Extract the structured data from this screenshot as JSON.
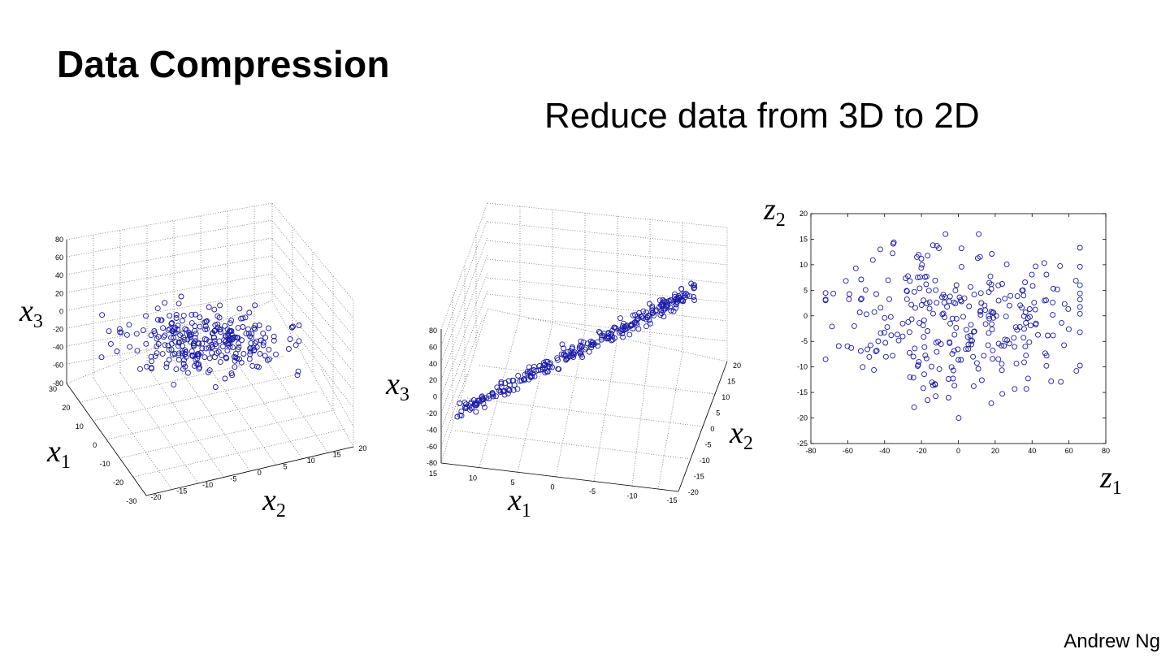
{
  "slide": {
    "title": "Data Compression",
    "subtitle": "Reduce data from 3D to 2D",
    "author": "Andrew Ng"
  },
  "colors": {
    "points": "#1a1aa6",
    "grid": "#666666"
  },
  "chart_data": [
    {
      "type": "scatter",
      "name": "plot-3d-original",
      "title": "",
      "axes": {
        "x1": {
          "label": "x1",
          "ticks": [
            30,
            20,
            10,
            0,
            -10,
            -20,
            -30
          ],
          "range": [
            -30,
            30
          ]
        },
        "x2": {
          "label": "x2",
          "ticks": [
            -20,
            -15,
            -10,
            -5,
            0,
            5,
            10,
            15,
            20
          ],
          "range": [
            -20,
            20
          ]
        },
        "x3": {
          "label": "x3",
          "ticks": [
            80,
            60,
            40,
            20,
            0,
            -20,
            -40,
            -60,
            -80
          ],
          "range": [
            -80,
            80
          ]
        }
      },
      "note": "approx. 300 points scattered in a thin slab near x3 ≈ -30",
      "seed": 11,
      "n_points": 300
    },
    {
      "type": "scatter",
      "name": "plot-3d-rotated",
      "title": "",
      "axes": {
        "x1": {
          "label": "x1",
          "ticks": [
            15,
            10,
            5,
            0,
            -5,
            -10,
            -15
          ],
          "range": [
            -15,
            15
          ]
        },
        "x2": {
          "label": "x2",
          "ticks": [
            20,
            15,
            10,
            5,
            0,
            -5,
            -10,
            -15,
            -20
          ],
          "range": [
            -20,
            20
          ]
        },
        "x3": {
          "label": "x3",
          "ticks": [
            80,
            60,
            40,
            20,
            0,
            -20,
            -40,
            -60,
            -80
          ],
          "range": [
            -80,
            80
          ]
        }
      },
      "note": "same points viewed edge-on; they lie close to a plane",
      "seed": 23,
      "n_points": 300
    },
    {
      "type": "scatter",
      "name": "plot-2d-projected",
      "title": "",
      "xlabel": "z1",
      "ylabel": "z2",
      "xlim": [
        -80,
        80
      ],
      "ylim": [
        -25,
        20
      ],
      "xticks": [
        -80,
        -60,
        -40,
        -20,
        0,
        20,
        40,
        60,
        80
      ],
      "yticks": [
        20,
        15,
        10,
        5,
        0,
        -5,
        -10,
        -15,
        -20,
        -25
      ],
      "seed": 37,
      "n_points": 300
    }
  ]
}
